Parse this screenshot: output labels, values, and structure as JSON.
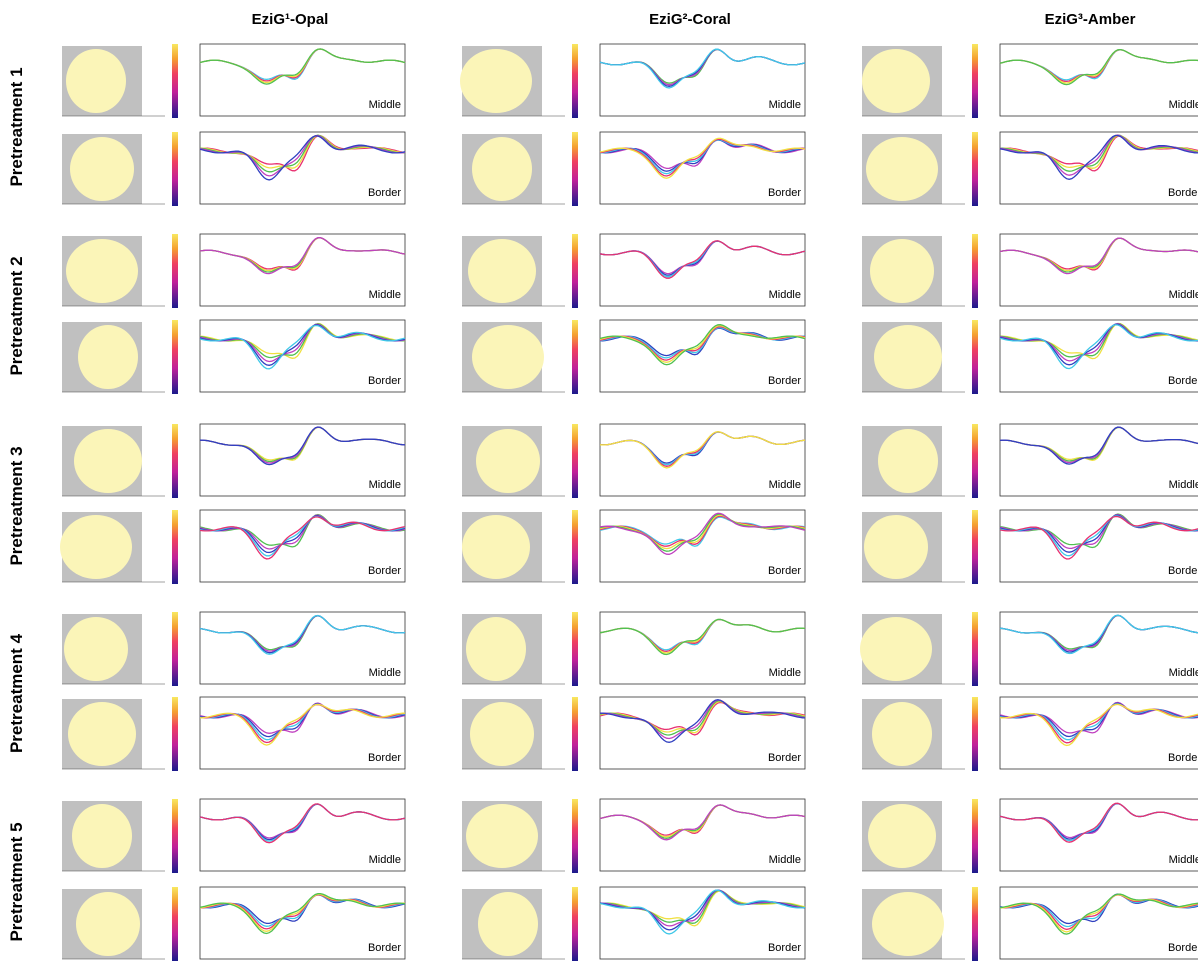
{
  "header": {
    "columns": [
      "EziG¹-Opal",
      "EziG²-Coral",
      "EziG³-Amber"
    ]
  },
  "rows": [
    {
      "label": "Pretreatment 1",
      "cells": [
        [
          "Middle",
          "Border"
        ],
        [
          "Middle",
          "Border"
        ],
        [
          "Middle",
          "Border"
        ]
      ]
    },
    {
      "label": "Pretreatment 2",
      "cells": [
        [
          "Middle",
          "Border"
        ],
        [
          "Middle",
          "Border"
        ],
        [
          "Middle",
          "Border"
        ]
      ]
    },
    {
      "label": "Pretreatment 3",
      "cells": [
        [
          "Middle",
          "Border"
        ],
        [
          "Middle",
          "Border"
        ],
        [
          "Middle",
          "Border"
        ]
      ]
    },
    {
      "label": "Pretreatment 4",
      "cells": [
        [
          "Middle",
          "Border"
        ],
        [
          "Middle",
          "Border"
        ],
        [
          "Middle",
          "Border"
        ]
      ]
    },
    {
      "label": "Pretreatment 5",
      "cells": [
        [
          "Middle",
          "Border"
        ],
        [
          "Middle",
          "Border"
        ],
        [
          "Middle",
          "Border"
        ]
      ]
    }
  ]
}
